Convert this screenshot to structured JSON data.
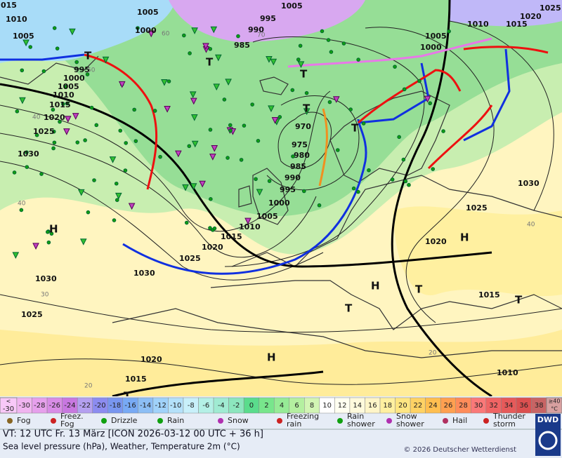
{
  "map": {
    "pressure_labels": [
      "015",
      "1010",
      "1005",
      "1000",
      "1005",
      "995",
      "1005",
      "990",
      "985",
      "1025",
      "1020",
      "1015",
      "1010",
      "1005",
      "1000",
      "995",
      "1000",
      "1005",
      "1010",
      "1015",
      "1020",
      "1025",
      "1030",
      "970",
      "975",
      "980",
      "985",
      "990",
      "995",
      "1000",
      "1005",
      "1010",
      "1015",
      "1020",
      "1025",
      "1030",
      "1030",
      "1025",
      "1020",
      "1015",
      "1030",
      "1025",
      "1020",
      "1015",
      "1010"
    ],
    "centers": [
      "H",
      "H",
      "H",
      "H",
      "T",
      "T",
      "T",
      "T",
      "T",
      "T",
      "T",
      "T",
      "T"
    ],
    "temperature_labels": [
      "60",
      "50",
      "40",
      "40",
      "30",
      "20",
      "20",
      "40",
      "70"
    ]
  },
  "scale": {
    "low_label": [
      "<",
      "-30"
    ],
    "cells": [
      {
        "label": "-30",
        "color": "#f0b4f0"
      },
      {
        "label": "-28",
        "color": "#e6a0ec"
      },
      {
        "label": "-26",
        "color": "#d88ce6"
      },
      {
        "label": "-24",
        "color": "#c878e0"
      },
      {
        "label": "-22",
        "color": "#b4a0f0"
      },
      {
        "label": "-20",
        "color": "#8c8cf0"
      },
      {
        "label": "-18",
        "color": "#7896f0"
      },
      {
        "label": "-16",
        "color": "#78aaf5"
      },
      {
        "label": "-14",
        "color": "#8cbef5"
      },
      {
        "label": "-12",
        "color": "#a0d2fa"
      },
      {
        "label": "-10",
        "color": "#b4e1fa"
      },
      {
        "label": "-8",
        "color": "#c8f0fa"
      },
      {
        "label": "-6",
        "color": "#b4f0e6"
      },
      {
        "label": "-4",
        "color": "#a0ebd2"
      },
      {
        "label": "-2",
        "color": "#8ce6be"
      },
      {
        "label": "0",
        "color": "#5adc8c"
      },
      {
        "label": "2",
        "color": "#78e68c"
      },
      {
        "label": "4",
        "color": "#96eb96"
      },
      {
        "label": "6",
        "color": "#b4f0a0"
      },
      {
        "label": "8",
        "color": "#d2f5b4"
      },
      {
        "label": "10",
        "color": "#ffffff"
      },
      {
        "label": "12",
        "color": "#fffff0"
      },
      {
        "label": "14",
        "color": "#fffadc"
      },
      {
        "label": "16",
        "color": "#fff5c8"
      },
      {
        "label": "18",
        "color": "#fff0a0"
      },
      {
        "label": "20",
        "color": "#ffe682"
      },
      {
        "label": "22",
        "color": "#ffd264"
      },
      {
        "label": "24",
        "color": "#ffbe50"
      },
      {
        "label": "26",
        "color": "#ffa050"
      },
      {
        "label": "28",
        "color": "#ff8c5a"
      },
      {
        "label": "30",
        "color": "#fa7878"
      },
      {
        "label": "32",
        "color": "#f06464"
      },
      {
        "label": "34",
        "color": "#e65a5a"
      },
      {
        "label": "36",
        "color": "#dc5050"
      },
      {
        "label": "38",
        "color": "#c86464"
      }
    ],
    "high_label": [
      "≥40",
      "°C"
    ]
  },
  "weather_legend": [
    "Fog",
    "Freez. Fog",
    "Drizzle",
    "Rain",
    "Snow",
    "Freezing rain",
    "Rain shower",
    "Snow shower",
    "Hail",
    "Thunder storm"
  ],
  "footer": {
    "valid_time": "VT: 12 UTC Fr.  13 März [ICON 2026-03-12  00 UTC + 36 h]",
    "description": "Sea level pressure (hPa), Weather, Temperature 2m (°C)",
    "copyright": "© 2026 Deutscher Wetterdienst",
    "logo": "DWD"
  }
}
